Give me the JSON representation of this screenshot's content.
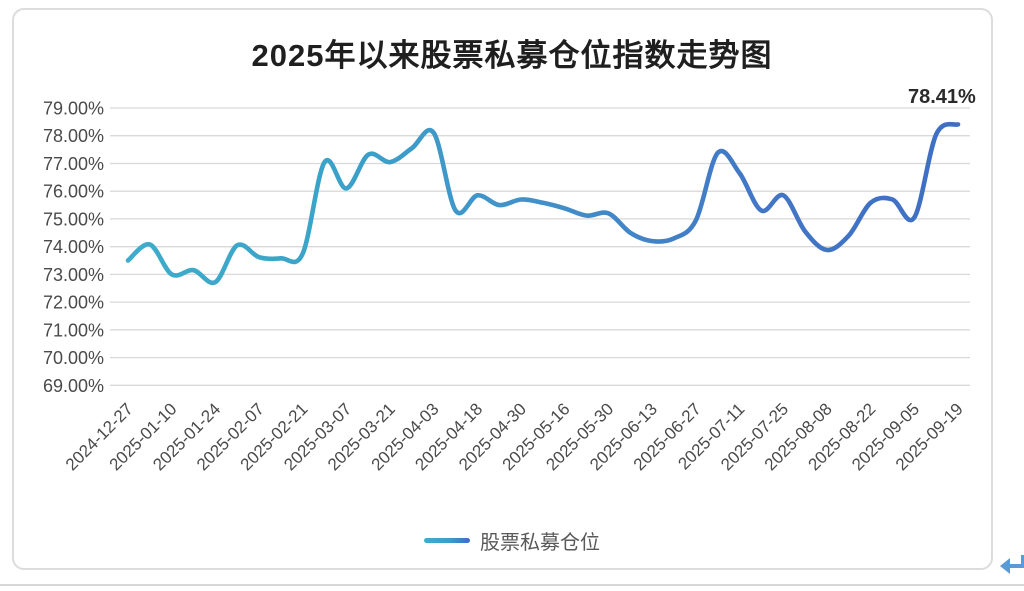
{
  "chart_data": {
    "type": "line",
    "title": "2025年以来股票私募仓位指数走势图",
    "legend": {
      "label": "股票私募仓位",
      "position": "bottom"
    },
    "end_label": "78.41%",
    "ylim": [
      69,
      79
    ],
    "grid": true,
    "y_tick_labels": [
      "79.00%",
      "78.00%",
      "77.00%",
      "76.00%",
      "75.00%",
      "74.00%",
      "73.00%",
      "72.00%",
      "71.00%",
      "70.00%",
      "69.00%"
    ],
    "x_tick_labels": [
      "2024-12-27",
      "2025-01-10",
      "2025-01-24",
      "2025-02-07",
      "2025-02-21",
      "2025-03-07",
      "2025-03-21",
      "2025-04-03",
      "2025-04-18",
      "2025-04-30",
      "2025-05-16",
      "2025-05-30",
      "2025-06-13",
      "2025-06-27",
      "2025-07-11",
      "2025-07-25",
      "2025-08-08",
      "2025-08-22",
      "2025-09-05",
      "2025-09-19"
    ],
    "series": [
      {
        "name": "股票私募仓位",
        "x": [
          "2024-12-27",
          "2025-01-03",
          "2025-01-10",
          "2025-01-17",
          "2025-01-24",
          "2025-01-31",
          "2025-02-07",
          "2025-02-14",
          "2025-02-21",
          "2025-02-28",
          "2025-03-07",
          "2025-03-14",
          "2025-03-21",
          "2025-03-28",
          "2025-04-03",
          "2025-04-11",
          "2025-04-18",
          "2025-04-25",
          "2025-04-30",
          "2025-05-09",
          "2025-05-16",
          "2025-05-23",
          "2025-05-30",
          "2025-06-06",
          "2025-06-13",
          "2025-06-20",
          "2025-06-27",
          "2025-07-04",
          "2025-07-11",
          "2025-07-18",
          "2025-07-25",
          "2025-08-01",
          "2025-08-08",
          "2025-08-15",
          "2025-08-22",
          "2025-08-29",
          "2025-09-05",
          "2025-09-12",
          "2025-09-19"
        ],
        "values": [
          73.5,
          74.08,
          73.0,
          73.15,
          72.72,
          74.05,
          73.62,
          73.58,
          73.75,
          77.05,
          76.1,
          77.32,
          77.05,
          77.55,
          78.1,
          75.3,
          75.85,
          75.5,
          75.7,
          75.58,
          75.38,
          75.12,
          75.2,
          74.5,
          74.2,
          74.3,
          74.95,
          77.38,
          76.65,
          75.3,
          75.85,
          74.55,
          73.88,
          74.4,
          75.58,
          75.7,
          75.05,
          78.05,
          78.41
        ]
      }
    ],
    "colors": {
      "line_gradient": [
        "#3fadcb",
        "#3aa3c9",
        "#4190c9",
        "#4277c5",
        "#3f6ec4"
      ],
      "grid": "#d9d9d9",
      "axis_text": "#4a4a4a",
      "title_text": "#1f1f1f",
      "legend_text": "#595959",
      "arrow": "#5b9bd5"
    }
  },
  "icons": {
    "return_arrow": "return-arrow-icon"
  }
}
